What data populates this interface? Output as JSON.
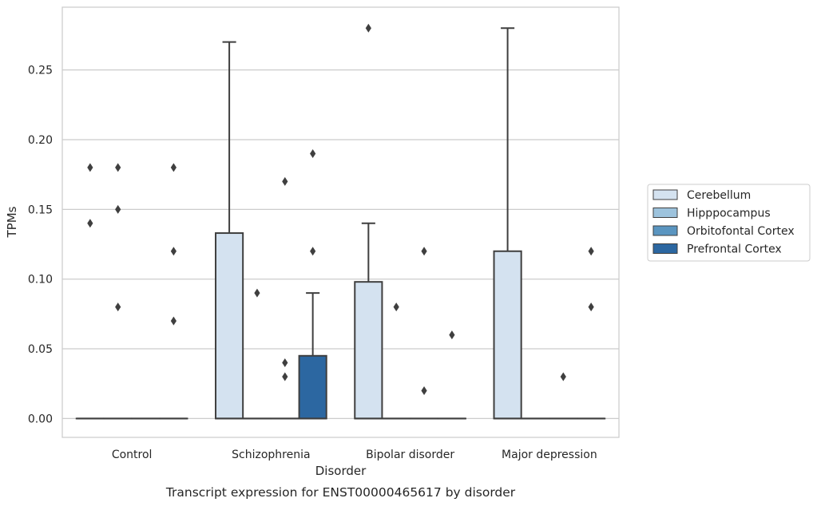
{
  "chart_data": {
    "type": "box",
    "caption": "Transcript expression for ENST00000465617 by disorder",
    "xlabel": "Disorder",
    "ylabel": "TPMs",
    "categories": [
      "Control",
      "Schizophrenia",
      "Bipolar disorder",
      "Major depression"
    ],
    "yticks": [
      "0.00",
      "0.05",
      "0.10",
      "0.15",
      "0.20",
      "0.25"
    ],
    "ylim": [
      -0.0135,
      0.295
    ],
    "grid": "horizontal",
    "legend_position": "right",
    "series": [
      {
        "name": "Cerebellum",
        "color": "#d4e2f0",
        "boxes": [
          {
            "q1": 0,
            "median": 0,
            "q3": 0,
            "whisker_low": 0,
            "whisker_high": 0,
            "outliers": [
              0.18,
              0.14
            ]
          },
          {
            "q1": 0,
            "median": 0,
            "q3": 0.133,
            "whisker_low": 0,
            "whisker_high": 0.27,
            "outliers": []
          },
          {
            "q1": 0,
            "median": 0,
            "q3": 0.098,
            "whisker_low": 0,
            "whisker_high": 0.14,
            "outliers": [
              0.28
            ]
          },
          {
            "q1": 0,
            "median": 0,
            "q3": 0.12,
            "whisker_low": 0,
            "whisker_high": 0.28,
            "outliers": []
          }
        ]
      },
      {
        "name": "Hipppocampus",
        "color": "#9dc3dd",
        "boxes": [
          {
            "q1": 0,
            "median": 0,
            "q3": 0,
            "whisker_low": 0,
            "whisker_high": 0,
            "outliers": [
              0.18,
              0.15,
              0.08
            ]
          },
          {
            "q1": 0,
            "median": 0,
            "q3": 0,
            "whisker_low": 0,
            "whisker_high": 0,
            "outliers": [
              0.09
            ]
          },
          {
            "q1": 0,
            "median": 0,
            "q3": 0,
            "whisker_low": 0,
            "whisker_high": 0,
            "outliers": [
              0.08
            ]
          },
          {
            "q1": 0,
            "median": 0,
            "q3": 0,
            "whisker_low": 0,
            "whisker_high": 0,
            "outliers": []
          }
        ]
      },
      {
        "name": "Orbitofontal Cortex",
        "color": "#5a95c0",
        "boxes": [
          {
            "q1": 0,
            "median": 0,
            "q3": 0,
            "whisker_low": 0,
            "whisker_high": 0,
            "outliers": []
          },
          {
            "q1": 0,
            "median": 0,
            "q3": 0,
            "whisker_low": 0,
            "whisker_high": 0,
            "outliers": [
              0.17,
              0.04,
              0.03
            ]
          },
          {
            "q1": 0,
            "median": 0,
            "q3": 0,
            "whisker_low": 0,
            "whisker_high": 0,
            "outliers": [
              0.12,
              0.02
            ]
          },
          {
            "q1": 0,
            "median": 0,
            "q3": 0,
            "whisker_low": 0,
            "whisker_high": 0,
            "outliers": [
              0.03
            ]
          }
        ]
      },
      {
        "name": "Prefrontal Cortex",
        "color": "#2c67a1",
        "boxes": [
          {
            "q1": 0,
            "median": 0,
            "q3": 0,
            "whisker_low": 0,
            "whisker_high": 0,
            "outliers": [
              0.18,
              0.12,
              0.07
            ]
          },
          {
            "q1": 0,
            "median": 0,
            "q3": 0.045,
            "whisker_low": 0,
            "whisker_high": 0.09,
            "outliers": [
              0.19,
              0.12
            ]
          },
          {
            "q1": 0,
            "median": 0,
            "q3": 0,
            "whisker_low": 0,
            "whisker_high": 0,
            "outliers": [
              0.06
            ]
          },
          {
            "q1": 0,
            "median": 0,
            "q3": 0,
            "whisker_low": 0,
            "whisker_high": 0,
            "outliers": [
              0.12,
              0.08
            ]
          }
        ]
      }
    ]
  }
}
